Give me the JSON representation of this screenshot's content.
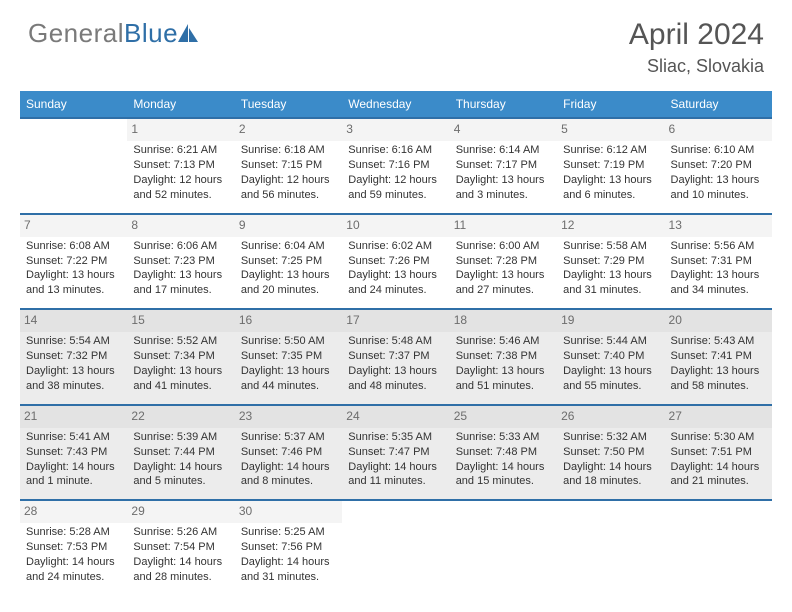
{
  "brand": {
    "part1": "General",
    "part2": "Blue"
  },
  "header": {
    "title": "April 2024",
    "location": "Sliac, Slovakia"
  },
  "colors": {
    "headerBar": "#3b8bc9",
    "weekDivider": "#2f6fa7",
    "shadeRow": "#ececec",
    "numStripShade": "#e3e3e3",
    "numStripPlain": "#f4f4f4",
    "textGray": "#6d6d6d"
  },
  "dow": [
    "Sunday",
    "Monday",
    "Tuesday",
    "Wednesday",
    "Thursday",
    "Friday",
    "Saturday"
  ],
  "weeks": [
    {
      "shaded": false,
      "days": [
        null,
        {
          "n": "1",
          "sr": "6:21 AM",
          "ss": "7:13 PM",
          "dl": "12 hours and 52 minutes."
        },
        {
          "n": "2",
          "sr": "6:18 AM",
          "ss": "7:15 PM",
          "dl": "12 hours and 56 minutes."
        },
        {
          "n": "3",
          "sr": "6:16 AM",
          "ss": "7:16 PM",
          "dl": "12 hours and 59 minutes."
        },
        {
          "n": "4",
          "sr": "6:14 AM",
          "ss": "7:17 PM",
          "dl": "13 hours and 3 minutes."
        },
        {
          "n": "5",
          "sr": "6:12 AM",
          "ss": "7:19 PM",
          "dl": "13 hours and 6 minutes."
        },
        {
          "n": "6",
          "sr": "6:10 AM",
          "ss": "7:20 PM",
          "dl": "13 hours and 10 minutes."
        }
      ]
    },
    {
      "shaded": false,
      "days": [
        {
          "n": "7",
          "sr": "6:08 AM",
          "ss": "7:22 PM",
          "dl": "13 hours and 13 minutes."
        },
        {
          "n": "8",
          "sr": "6:06 AM",
          "ss": "7:23 PM",
          "dl": "13 hours and 17 minutes."
        },
        {
          "n": "9",
          "sr": "6:04 AM",
          "ss": "7:25 PM",
          "dl": "13 hours and 20 minutes."
        },
        {
          "n": "10",
          "sr": "6:02 AM",
          "ss": "7:26 PM",
          "dl": "13 hours and 24 minutes."
        },
        {
          "n": "11",
          "sr": "6:00 AM",
          "ss": "7:28 PM",
          "dl": "13 hours and 27 minutes."
        },
        {
          "n": "12",
          "sr": "5:58 AM",
          "ss": "7:29 PM",
          "dl": "13 hours and 31 minutes."
        },
        {
          "n": "13",
          "sr": "5:56 AM",
          "ss": "7:31 PM",
          "dl": "13 hours and 34 minutes."
        }
      ]
    },
    {
      "shaded": true,
      "days": [
        {
          "n": "14",
          "sr": "5:54 AM",
          "ss": "7:32 PM",
          "dl": "13 hours and 38 minutes."
        },
        {
          "n": "15",
          "sr": "5:52 AM",
          "ss": "7:34 PM",
          "dl": "13 hours and 41 minutes."
        },
        {
          "n": "16",
          "sr": "5:50 AM",
          "ss": "7:35 PM",
          "dl": "13 hours and 44 minutes."
        },
        {
          "n": "17",
          "sr": "5:48 AM",
          "ss": "7:37 PM",
          "dl": "13 hours and 48 minutes."
        },
        {
          "n": "18",
          "sr": "5:46 AM",
          "ss": "7:38 PM",
          "dl": "13 hours and 51 minutes."
        },
        {
          "n": "19",
          "sr": "5:44 AM",
          "ss": "7:40 PM",
          "dl": "13 hours and 55 minutes."
        },
        {
          "n": "20",
          "sr": "5:43 AM",
          "ss": "7:41 PM",
          "dl": "13 hours and 58 minutes."
        }
      ]
    },
    {
      "shaded": true,
      "days": [
        {
          "n": "21",
          "sr": "5:41 AM",
          "ss": "7:43 PM",
          "dl": "14 hours and 1 minute."
        },
        {
          "n": "22",
          "sr": "5:39 AM",
          "ss": "7:44 PM",
          "dl": "14 hours and 5 minutes."
        },
        {
          "n": "23",
          "sr": "5:37 AM",
          "ss": "7:46 PM",
          "dl": "14 hours and 8 minutes."
        },
        {
          "n": "24",
          "sr": "5:35 AM",
          "ss": "7:47 PM",
          "dl": "14 hours and 11 minutes."
        },
        {
          "n": "25",
          "sr": "5:33 AM",
          "ss": "7:48 PM",
          "dl": "14 hours and 15 minutes."
        },
        {
          "n": "26",
          "sr": "5:32 AM",
          "ss": "7:50 PM",
          "dl": "14 hours and 18 minutes."
        },
        {
          "n": "27",
          "sr": "5:30 AM",
          "ss": "7:51 PM",
          "dl": "14 hours and 21 minutes."
        }
      ]
    },
    {
      "shaded": false,
      "days": [
        {
          "n": "28",
          "sr": "5:28 AM",
          "ss": "7:53 PM",
          "dl": "14 hours and 24 minutes."
        },
        {
          "n": "29",
          "sr": "5:26 AM",
          "ss": "7:54 PM",
          "dl": "14 hours and 28 minutes."
        },
        {
          "n": "30",
          "sr": "5:25 AM",
          "ss": "7:56 PM",
          "dl": "14 hours and 31 minutes."
        },
        null,
        null,
        null,
        null
      ]
    }
  ],
  "labels": {
    "sunrise": "Sunrise: ",
    "sunset": "Sunset: ",
    "daylight": "Daylight: "
  }
}
